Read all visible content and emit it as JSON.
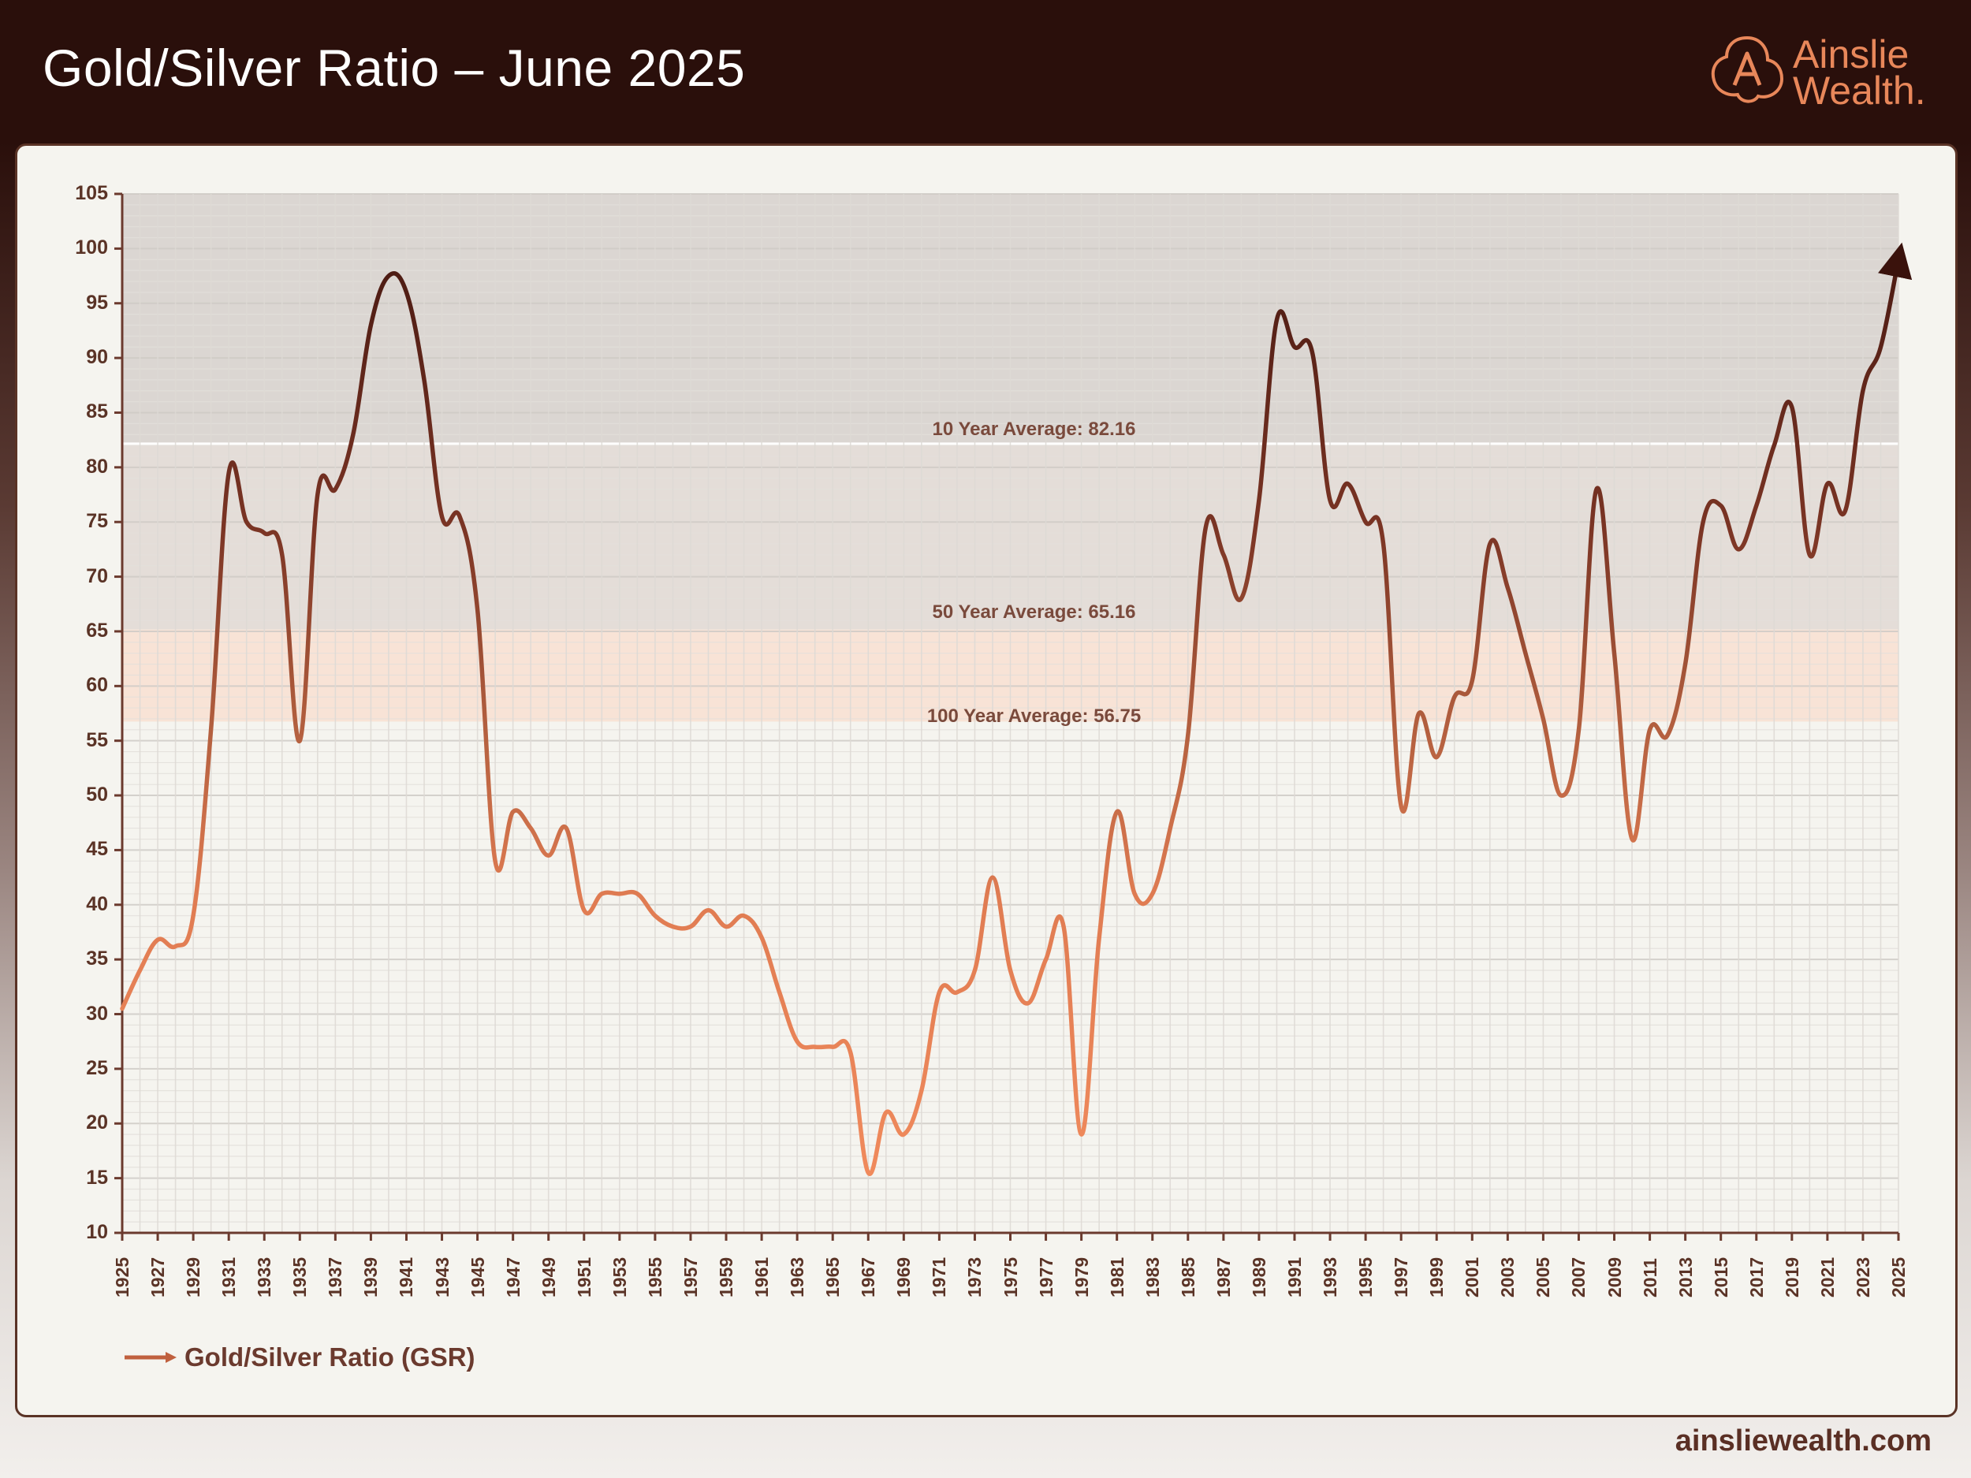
{
  "header": {
    "title": "Gold/Silver Ratio – June 2025",
    "logo_line1": "Ainslie",
    "logo_line2": "Wealth."
  },
  "footer": {
    "site": "ainsliewealth.com"
  },
  "legend": {
    "label": "Gold/Silver Ratio (GSR)"
  },
  "colors": {
    "line_low": "#ec8457",
    "line_mid": "#b5603f",
    "line_high": "#5a2217",
    "band_dark": "#d9d4d0",
    "band_peach": "#f8e3d6",
    "grid": "#dcdad4",
    "axis": "#6b3a2e"
  },
  "chart_data": {
    "type": "line",
    "title": "Gold/Silver Ratio – June 2025",
    "xlabel": "",
    "ylabel": "",
    "xlim": [
      1925,
      2025
    ],
    "ylim": [
      10,
      105
    ],
    "y_ticks": [
      10,
      15,
      20,
      25,
      30,
      35,
      40,
      45,
      50,
      55,
      60,
      65,
      70,
      75,
      80,
      85,
      90,
      95,
      100,
      105
    ],
    "x_ticks": [
      1925,
      1927,
      1929,
      1931,
      1933,
      1935,
      1937,
      1939,
      1941,
      1943,
      1945,
      1947,
      1949,
      1951,
      1953,
      1955,
      1957,
      1959,
      1961,
      1963,
      1965,
      1967,
      1969,
      1971,
      1973,
      1975,
      1977,
      1979,
      1981,
      1983,
      1985,
      1987,
      1989,
      1991,
      1993,
      1995,
      1997,
      1999,
      2001,
      2003,
      2005,
      2007,
      2009,
      2011,
      2013,
      2015,
      2017,
      2019,
      2021,
      2023,
      2025
    ],
    "grid": true,
    "legend_position": "bottom-left",
    "averages": [
      {
        "label": "10 Year Average: 82.16",
        "value": 82.16
      },
      {
        "label": "50 Year Average: 65.16",
        "value": 65.16
      },
      {
        "label": "100 Year Average: 56.75",
        "value": 56.75
      }
    ],
    "series": [
      {
        "name": "Gold/Silver Ratio (GSR)",
        "x": [
          1925,
          1926,
          1927,
          1928,
          1929,
          1930,
          1931,
          1932,
          1933,
          1934,
          1935,
          1936,
          1937,
          1938,
          1939,
          1940,
          1941,
          1942,
          1943,
          1944,
          1945,
          1946,
          1947,
          1948,
          1949,
          1950,
          1951,
          1952,
          1953,
          1954,
          1955,
          1956,
          1957,
          1958,
          1959,
          1960,
          1961,
          1962,
          1963,
          1964,
          1965,
          1966,
          1967,
          1968,
          1969,
          1970,
          1971,
          1972,
          1973,
          1974,
          1975,
          1976,
          1977,
          1978,
          1979,
          1980,
          1981,
          1982,
          1983,
          1984,
          1985,
          1986,
          1987,
          1988,
          1989,
          1990,
          1991,
          1992,
          1993,
          1994,
          1995,
          1996,
          1997,
          1998,
          1999,
          2000,
          2001,
          2002,
          2003,
          2004,
          2005,
          2006,
          2007,
          2008,
          2009,
          2010,
          2011,
          2012,
          2013,
          2014,
          2015,
          2016,
          2017,
          2018,
          2019,
          2020,
          2021,
          2022,
          2023,
          2024,
          2025
        ],
        "values": [
          30.5,
          34,
          36.8,
          36.2,
          39,
          56,
          79.5,
          75,
          74,
          72,
          55,
          77.5,
          78,
          83,
          93,
          97.5,
          96,
          88,
          75.5,
          75.5,
          67,
          44,
          48.5,
          47,
          44.5,
          47,
          39.5,
          41,
          41,
          41,
          39,
          38,
          38,
          39.5,
          38,
          39,
          37,
          32,
          27.5,
          27,
          27,
          26.5,
          15.5,
          21,
          19,
          23,
          32,
          32,
          34,
          42.5,
          34,
          31,
          35,
          38,
          19,
          37,
          48.5,
          41,
          41,
          47,
          55.5,
          74.5,
          72,
          68,
          77,
          93.5,
          91,
          90.5,
          77,
          78.5,
          75,
          73,
          49,
          57.5,
          53.5,
          59,
          60.5,
          73,
          69,
          63,
          57,
          50,
          56,
          78,
          63,
          46,
          56,
          55.5,
          62,
          75,
          76.5,
          72.5,
          76.5,
          82,
          85.5,
          72,
          78.5,
          76,
          87,
          91,
          99
        ]
      }
    ]
  }
}
